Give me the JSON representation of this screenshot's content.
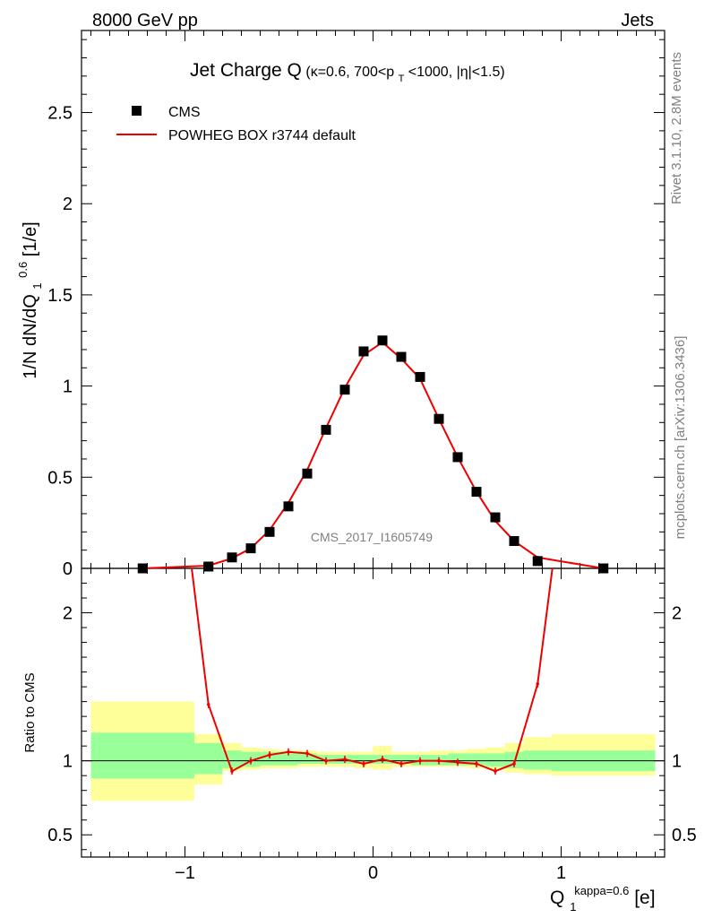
{
  "header": {
    "left": "8000 GeV pp",
    "right": "Jets"
  },
  "side_labels": {
    "rivet": "Rivet 3.1.10,  2.8M events",
    "mcplots": "mcplots.cern.ch [arXiv:1306.3436]"
  },
  "watermark": "CMS_2017_I1605749",
  "chart_data": {
    "type": "line",
    "title": {
      "main": "Jet Charge Q",
      "sub": "(κ=0.6, 700<p",
      "sub_T": "T",
      "sub_end": "<1000, |η|<1.5)"
    },
    "xlabel": {
      "main": "Q",
      "sub": "1",
      "sup": "kappa=0.6",
      "unit": " [e]"
    },
    "ylabel": {
      "pre": "1/N dN/dQ",
      "sub": "1",
      "sup": "0.6",
      "unit": " [1/e]"
    },
    "ratio_ylabel": "Ratio to CMS",
    "xlim": [
      -1.55,
      1.55
    ],
    "ylim": [
      0,
      2.95
    ],
    "ratio_ylim": [
      0.35,
      2.3
    ],
    "x_ticks": [
      -1,
      0,
      1
    ],
    "x_tick_labels": [
      "−1",
      "0",
      "1"
    ],
    "y_ticks": [
      0,
      0.5,
      1,
      1.5,
      2,
      2.5
    ],
    "y_tick_labels": [
      "0",
      "0.5",
      "1",
      "1.5",
      "2",
      "2.5"
    ],
    "ratio_y_ticks": [
      0.5,
      1,
      2
    ],
    "ratio_y_tick_labels": [
      "0.5",
      "1",
      "2"
    ],
    "legend": {
      "position": "top-left",
      "entries": [
        "CMS",
        "POWHEG BOX r3744 default"
      ]
    },
    "series": [
      {
        "name": "CMS",
        "color": "#000000",
        "x": [
          -1.225,
          -0.875,
          -0.75,
          -0.65,
          -0.55,
          -0.45,
          -0.35,
          -0.25,
          -0.15,
          -0.05,
          0.05,
          0.15,
          0.25,
          0.35,
          0.45,
          0.55,
          0.65,
          0.75,
          0.875,
          1.225
        ],
        "values": [
          0.0,
          0.01,
          0.06,
          0.11,
          0.2,
          0.34,
          0.52,
          0.76,
          0.98,
          1.19,
          1.25,
          1.16,
          1.05,
          0.82,
          0.61,
          0.42,
          0.28,
          0.15,
          0.04,
          0.0
        ]
      },
      {
        "name": "POWHEG BOX r3744 default",
        "color": "#ee0000",
        "x": [
          -1.225,
          -0.875,
          -0.75,
          -0.65,
          -0.55,
          -0.45,
          -0.35,
          -0.25,
          -0.15,
          -0.05,
          0.05,
          0.15,
          0.25,
          0.35,
          0.45,
          0.55,
          0.65,
          0.75,
          0.875,
          1.225
        ],
        "values": [
          0.0,
          0.015,
          0.055,
          0.11,
          0.21,
          0.36,
          0.54,
          0.77,
          0.99,
          1.17,
          1.24,
          1.15,
          1.04,
          0.82,
          0.61,
          0.42,
          0.26,
          0.15,
          0.06,
          0.0
        ]
      }
    ],
    "ratio": {
      "x": [
        -1.225,
        -0.875,
        -0.75,
        -0.65,
        -0.55,
        -0.45,
        -0.35,
        -0.25,
        -0.15,
        -0.05,
        0.05,
        0.15,
        0.25,
        0.35,
        0.45,
        0.55,
        0.65,
        0.75,
        0.875,
        1.225
      ],
      "values": [
        5.0,
        1.38,
        0.93,
        1.0,
        1.04,
        1.06,
        1.05,
        1.0,
        1.01,
        0.98,
        1.01,
        0.98,
        1.0,
        1.0,
        0.99,
        0.98,
        0.93,
        0.98,
        1.52,
        5.0
      ],
      "band_edges": [
        -1.5,
        -0.95,
        -0.8,
        -0.7,
        -0.6,
        -0.5,
        -0.4,
        -0.3,
        -0.2,
        -0.1,
        0.0,
        0.1,
        0.2,
        0.3,
        0.4,
        0.5,
        0.6,
        0.7,
        0.8,
        0.95,
        1.5
      ],
      "stat_band": [
        [
          0.88,
          1.19
        ],
        [
          0.91,
          1.12
        ],
        [
          0.95,
          1.07
        ],
        [
          0.96,
          1.06
        ],
        [
          0.97,
          1.06
        ],
        [
          0.97,
          1.05
        ],
        [
          0.98,
          1.05
        ],
        [
          0.98,
          1.04
        ],
        [
          0.98,
          1.04
        ],
        [
          0.98,
          1.04
        ],
        [
          0.98,
          1.04
        ],
        [
          0.98,
          1.04
        ],
        [
          0.97,
          1.04
        ],
        [
          0.97,
          1.04
        ],
        [
          0.97,
          1.05
        ],
        [
          0.97,
          1.05
        ],
        [
          0.96,
          1.05
        ],
        [
          0.95,
          1.06
        ],
        [
          0.94,
          1.07
        ],
        [
          0.93,
          1.07
        ]
      ],
      "total_band": [
        [
          0.73,
          1.4
        ],
        [
          0.84,
          1.18
        ],
        [
          0.93,
          1.12
        ],
        [
          0.94,
          1.09
        ],
        [
          0.95,
          1.08
        ],
        [
          0.95,
          1.07
        ],
        [
          0.96,
          1.07
        ],
        [
          0.96,
          1.06
        ],
        [
          0.96,
          1.06
        ],
        [
          0.95,
          1.06
        ],
        [
          0.94,
          1.1
        ],
        [
          0.96,
          1.06
        ],
        [
          0.96,
          1.06
        ],
        [
          0.96,
          1.07
        ],
        [
          0.96,
          1.07
        ],
        [
          0.95,
          1.08
        ],
        [
          0.94,
          1.09
        ],
        [
          0.92,
          1.12
        ],
        [
          0.91,
          1.16
        ],
        [
          0.9,
          1.18
        ]
      ],
      "stat_color": "#99ff99",
      "total_color": "#ffff99"
    }
  }
}
